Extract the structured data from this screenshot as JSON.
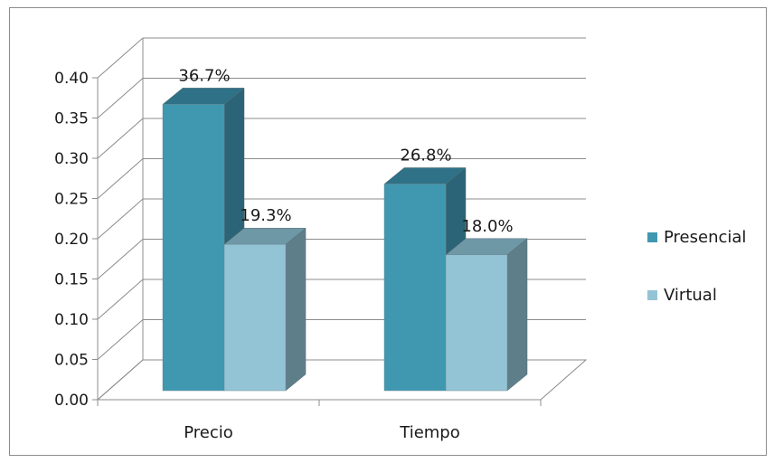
{
  "chart_data": {
    "type": "bar",
    "categories": [
      "Precio",
      "Tiempo"
    ],
    "series": [
      {
        "name": "Presencial",
        "values": [
          0.367,
          0.268
        ],
        "labels": [
          "36.7%",
          "26.8%"
        ]
      },
      {
        "name": "Virtual",
        "values": [
          0.193,
          0.18
        ],
        "labels": [
          "19.3%",
          "18.0%"
        ]
      }
    ],
    "ylim": [
      0,
      0.4
    ],
    "yticks": [
      "0.00",
      "0.05",
      "0.10",
      "0.15",
      "0.20",
      "0.25",
      "0.30",
      "0.35",
      "0.40"
    ],
    "grid": true,
    "legend_position": "right",
    "three_d": true
  },
  "colors": {
    "Presencial": {
      "front": "#3f98b0",
      "side": "#2b6476",
      "top": "#2f7186"
    },
    "Virtual": {
      "front": "#93c4d6",
      "side": "#5e7e8a",
      "top": "#6f98a6"
    }
  }
}
